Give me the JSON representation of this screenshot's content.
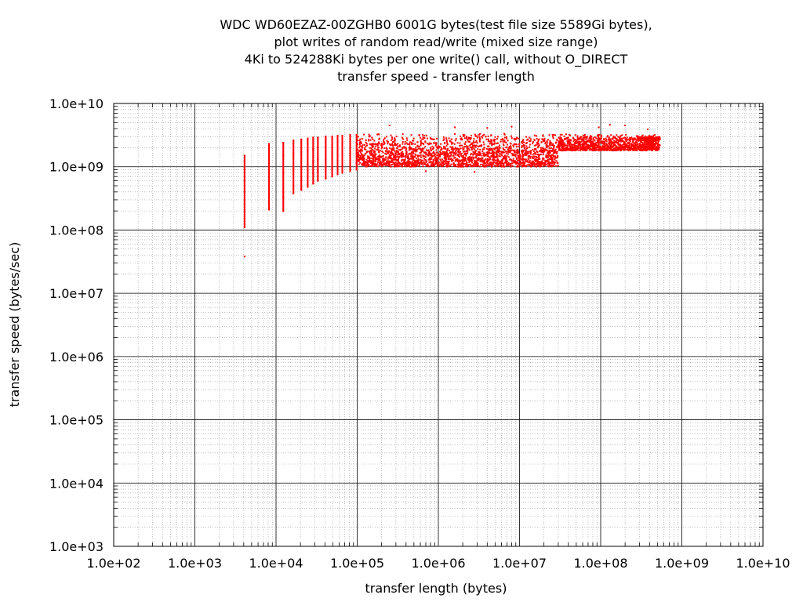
{
  "chart_data": {
    "type": "scatter",
    "title_lines": [
      "WDC WD60EZAZ-00ZGHB0 6001G bytes(test file size 5589Gi bytes),",
      "plot writes of random read/write (mixed size range)",
      "4Ki to 524288Ki bytes per one write() call, without O_DIRECT",
      "transfer speed - transfer length"
    ],
    "xlabel": "transfer length (bytes)",
    "ylabel": "transfer speed (bytes/sec)",
    "xscale": "log",
    "yscale": "log",
    "xlim": [
      100,
      10000000000
    ],
    "ylim": [
      1000,
      10000000000
    ],
    "x_ticks": [
      {
        "value": 100,
        "label": "1.0e+02"
      },
      {
        "value": 1000,
        "label": "1.0e+03"
      },
      {
        "value": 10000,
        "label": "1.0e+04"
      },
      {
        "value": 100000,
        "label": "1.0e+05"
      },
      {
        "value": 1000000,
        "label": "1.0e+06"
      },
      {
        "value": 10000000,
        "label": "1.0e+07"
      },
      {
        "value": 100000000,
        "label": "1.0e+08"
      },
      {
        "value": 1000000000,
        "label": "1.0e+09"
      },
      {
        "value": 10000000000,
        "label": "1.0e+10"
      }
    ],
    "y_ticks": [
      {
        "value": 1000,
        "label": "1.0e+03"
      },
      {
        "value": 10000,
        "label": "1.0e+04"
      },
      {
        "value": 100000,
        "label": "1.0e+05"
      },
      {
        "value": 1000000,
        "label": "1.0e+06"
      },
      {
        "value": 10000000,
        "label": "1.0e+07"
      },
      {
        "value": 100000000,
        "label": "1.0e+08"
      },
      {
        "value": 1000000000,
        "label": "1.0e+09"
      },
      {
        "value": 10000000000,
        "label": "1.0e+10"
      }
    ],
    "grid": true,
    "minor_grid": true,
    "legend": "none",
    "series_color": "#ff0000",
    "series": [
      {
        "points": [
          {
            "x": 4096,
            "y": 1500000000
          },
          {
            "x": 4096,
            "y": 1200000000
          },
          {
            "x": 4096,
            "y": 900000000
          },
          {
            "x": 4096,
            "y": 600000000
          },
          {
            "x": 4096,
            "y": 400000000
          },
          {
            "x": 4096,
            "y": 250000000
          },
          {
            "x": 4096,
            "y": 150000000
          },
          {
            "x": 4096,
            "y": 110000000
          },
          {
            "x": 4096,
            "y": 38000000
          },
          {
            "x": 8192,
            "y": 2300000000
          },
          {
            "x": 8192,
            "y": 1600000000
          },
          {
            "x": 8192,
            "y": 1000000000
          },
          {
            "x": 8192,
            "y": 600000000
          },
          {
            "x": 8192,
            "y": 350000000
          },
          {
            "x": 8192,
            "y": 210000000
          },
          {
            "x": 12288,
            "y": 2400000000
          },
          {
            "x": 12288,
            "y": 1500000000
          },
          {
            "x": 12288,
            "y": 800000000
          },
          {
            "x": 12288,
            "y": 400000000
          },
          {
            "x": 12288,
            "y": 330000000
          },
          {
            "x": 12288,
            "y": 200000000
          },
          {
            "x": 16384,
            "y": 2600000000
          },
          {
            "x": 16384,
            "y": 1600000000
          },
          {
            "x": 16384,
            "y": 900000000
          },
          {
            "x": 16384,
            "y": 500000000
          },
          {
            "x": 16384,
            "y": 380000000
          },
          {
            "x": 20480,
            "y": 2700000000
          },
          {
            "x": 20480,
            "y": 1700000000
          },
          {
            "x": 20480,
            "y": 1000000000
          },
          {
            "x": 20480,
            "y": 600000000
          },
          {
            "x": 20480,
            "y": 430000000
          },
          {
            "x": 24576,
            "y": 2800000000
          },
          {
            "x": 24576,
            "y": 1800000000
          },
          {
            "x": 24576,
            "y": 1100000000
          },
          {
            "x": 24576,
            "y": 700000000
          },
          {
            "x": 24576,
            "y": 480000000
          },
          {
            "x": 28672,
            "y": 2900000000
          },
          {
            "x": 28672,
            "y": 1900000000
          },
          {
            "x": 28672,
            "y": 1200000000
          },
          {
            "x": 28672,
            "y": 800000000
          },
          {
            "x": 28672,
            "y": 540000000
          },
          {
            "x": 32768,
            "y": 2900000000
          },
          {
            "x": 32768,
            "y": 2000000000
          },
          {
            "x": 32768,
            "y": 1300000000
          },
          {
            "x": 32768,
            "y": 850000000
          },
          {
            "x": 32768,
            "y": 600000000
          },
          {
            "x": 40960,
            "y": 3000000000
          },
          {
            "x": 40960,
            "y": 2000000000
          },
          {
            "x": 40960,
            "y": 1300000000
          },
          {
            "x": 40960,
            "y": 900000000
          },
          {
            "x": 40960,
            "y": 650000000
          },
          {
            "x": 49152,
            "y": 3000000000
          },
          {
            "x": 49152,
            "y": 2100000000
          },
          {
            "x": 49152,
            "y": 1400000000
          },
          {
            "x": 49152,
            "y": 950000000
          },
          {
            "x": 49152,
            "y": 700000000
          },
          {
            "x": 57344,
            "y": 3100000000
          },
          {
            "x": 57344,
            "y": 2200000000
          },
          {
            "x": 57344,
            "y": 1500000000
          },
          {
            "x": 57344,
            "y": 1000000000
          },
          {
            "x": 57344,
            "y": 760000000
          },
          {
            "x": 65536,
            "y": 3100000000
          },
          {
            "x": 65536,
            "y": 2200000000
          },
          {
            "x": 65536,
            "y": 1500000000
          },
          {
            "x": 65536,
            "y": 1050000000
          },
          {
            "x": 65536,
            "y": 800000000
          },
          {
            "x": 81920,
            "y": 3200000000
          },
          {
            "x": 81920,
            "y": 2300000000
          },
          {
            "x": 81920,
            "y": 1600000000
          },
          {
            "x": 81920,
            "y": 1100000000
          },
          {
            "x": 81920,
            "y": 850000000
          },
          {
            "x": 98304,
            "y": 3200000000
          },
          {
            "x": 98304,
            "y": 2400000000
          },
          {
            "x": 98304,
            "y": 1600000000
          },
          {
            "x": 98304,
            "y": 1150000000
          },
          {
            "x": 98304,
            "y": 900000000
          }
        ]
      }
    ],
    "dense_bands": [
      {
        "x_from": 100000,
        "x_to": 30000000,
        "y_low": 1000000000,
        "y_high": 3400000000
      },
      {
        "x_from": 30000000,
        "x_to": 540000000,
        "y_low": 1800000000,
        "y_high": 3300000000
      },
      {
        "x_from": 300000000,
        "x_to": 540000000,
        "y_low": 2600000000,
        "y_high": 3000000000
      }
    ],
    "outliers": [
      {
        "x": 1600000,
        "y": 4200000000
      },
      {
        "x": 4000000,
        "y": 4100000000
      },
      {
        "x": 8000000,
        "y": 4300000000
      },
      {
        "x": 95000000,
        "y": 4200000000
      },
      {
        "x": 130000000,
        "y": 4600000000
      },
      {
        "x": 200000000,
        "y": 4500000000
      },
      {
        "x": 380000000,
        "y": 3900000000
      },
      {
        "x": 250000,
        "y": 4500000000
      },
      {
        "x": 700000,
        "y": 850000000
      },
      {
        "x": 2800000,
        "y": 830000000
      }
    ]
  }
}
